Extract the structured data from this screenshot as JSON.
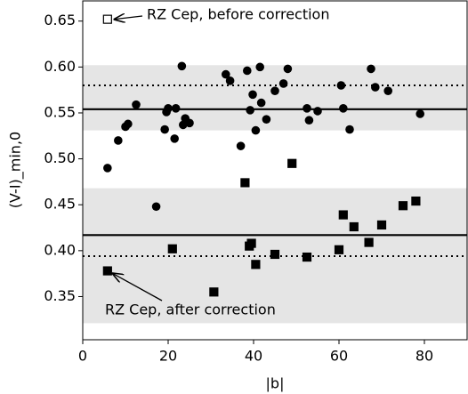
{
  "chart_data": {
    "type": "scatter",
    "xlabel": "|b|",
    "ylabel": "(V-I)_min,0",
    "xlim": [
      0,
      90
    ],
    "ylim": [
      0.303,
      0.672
    ],
    "xticks": [
      0,
      20,
      40,
      60,
      80
    ],
    "yticks": [
      0.35,
      {
        "value": 0.4,
        "label": "0.40"
      },
      0.45,
      {
        "value": 0.5,
        "label": "0.50"
      },
      0.55,
      {
        "value": 0.6,
        "label": "0.60"
      },
      0.65
    ],
    "bands": [
      {
        "range": [
          0.531,
          0.602
        ],
        "color": "#e5e5e5"
      },
      {
        "range": [
          0.321,
          0.468
        ],
        "color": "#e5e5e5"
      }
    ],
    "hlines": [
      {
        "value": 0.554,
        "style": "solid"
      },
      {
        "value": 0.58,
        "style": "dotted"
      },
      {
        "value": 0.417,
        "style": "solid"
      },
      {
        "value": 0.394,
        "style": "dotted"
      }
    ],
    "series": [
      {
        "marker": "circle",
        "color": "#000000",
        "x": [
          5.8,
          8.3,
          10.0,
          10.6,
          12.5,
          17.2,
          19.2,
          19.6,
          20.0,
          21.5,
          21.8,
          23.2,
          23.5,
          24.0,
          25.0,
          33.5,
          34.5,
          37.0,
          38.5,
          39.2,
          39.8,
          40.5,
          41.5,
          41.8,
          43.0,
          45.0,
          47.0,
          48.0,
          52.5,
          53.0,
          55.0,
          60.5,
          61.0,
          62.5,
          67.5,
          68.5,
          71.5,
          79.0
        ],
        "values": [
          0.49,
          0.52,
          0.535,
          0.538,
          0.559,
          0.448,
          0.532,
          0.551,
          0.555,
          0.522,
          0.555,
          0.601,
          0.537,
          0.544,
          0.539,
          0.592,
          0.585,
          0.514,
          0.596,
          0.553,
          0.57,
          0.531,
          0.6,
          0.561,
          0.543,
          0.574,
          0.582,
          0.598,
          0.555,
          0.542,
          0.552,
          0.58,
          0.555,
          0.532,
          0.598,
          0.578,
          0.574,
          0.549
        ]
      },
      {
        "marker": "square",
        "color": "#000000",
        "x": [
          5.8,
          21.0,
          30.7,
          38.0,
          39.0,
          39.5,
          40.5,
          45.0,
          49.0,
          52.5,
          60.0,
          61.0,
          63.5,
          67.0,
          70.0,
          75.0,
          78.0
        ],
        "values": [
          0.378,
          0.402,
          0.355,
          0.474,
          0.405,
          0.408,
          0.385,
          0.396,
          0.495,
          0.393,
          0.401,
          0.439,
          0.426,
          0.409,
          0.428,
          0.449,
          0.454
        ]
      },
      {
        "marker": "open-square",
        "color": "#000000",
        "x": [
          5.8
        ],
        "values": [
          0.652
        ]
      }
    ],
    "annotations": [
      "RZ Cep, before correction",
      "RZ Cep, after correction"
    ]
  }
}
